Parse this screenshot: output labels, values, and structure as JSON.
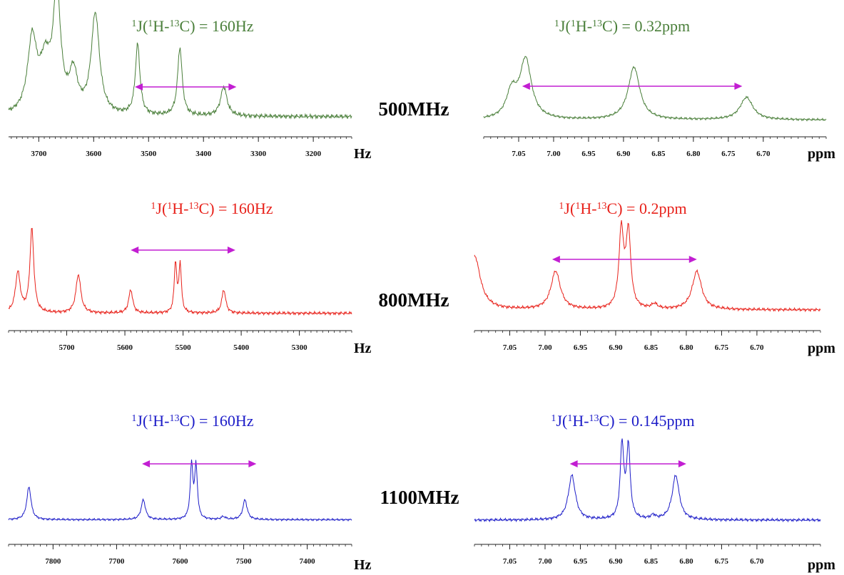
{
  "colors": {
    "green": "#4a7f3a",
    "red": "#e8211a",
    "blue": "#1c1cc8",
    "arrow": "#c21ed2",
    "axis": "#222222"
  },
  "fields": [
    {
      "label": "500MHz",
      "color": "#4a7f3a"
    },
    {
      "label": "800MHz",
      "color": "#e8211a"
    },
    {
      "label": "1100MHz",
      "color": "#1c1cc8"
    }
  ],
  "units": {
    "hz": "Hz",
    "ppm": "ppm"
  },
  "chart_data": [
    {
      "type": "line",
      "panel": "500MHz-Hz",
      "title_parts": [
        "1",
        "J(",
        "1",
        "H-",
        "13",
        "C) = 160Hz"
      ],
      "xlabel": "Hz",
      "xlim": [
        3755,
        3130
      ],
      "x_reversed": true,
      "xticks": [
        3700,
        3600,
        3500,
        3400,
        3300,
        3200
      ],
      "coupling_arrow": {
        "from": 3525,
        "to": 3340
      },
      "baseline": 0.05,
      "peaks": [
        {
          "x": 3712,
          "h": 0.62,
          "w": 10
        },
        {
          "x": 3688,
          "h": 0.4,
          "w": 12
        },
        {
          "x": 3667,
          "h": 1.0,
          "w": 8
        },
        {
          "x": 3637,
          "h": 0.33,
          "w": 9
        },
        {
          "x": 3597,
          "h": 0.85,
          "w": 9
        },
        {
          "x": 3520,
          "h": 0.6,
          "w": 5
        },
        {
          "x": 3443,
          "h": 0.58,
          "w": 5
        },
        {
          "x": 3363,
          "h": 0.25,
          "w": 7
        }
      ]
    },
    {
      "type": "line",
      "panel": "500MHz-ppm",
      "title_parts": [
        "1",
        "J(",
        "1",
        "H-",
        "13",
        "C) = 0.32ppm"
      ],
      "xlabel": "ppm",
      "xlim": [
        7.1,
        6.61
      ],
      "x_reversed": true,
      "xticks": [
        7.05,
        7.0,
        6.95,
        6.9,
        6.85,
        6.8,
        6.75,
        6.7
      ],
      "coupling_arrow": {
        "from": 7.045,
        "to": 6.73
      },
      "baseline": 0.04,
      "peaks": [
        {
          "x": 7.04,
          "h": 0.92,
          "w": 0.01
        },
        {
          "x": 7.06,
          "h": 0.4,
          "w": 0.009
        },
        {
          "x": 6.885,
          "h": 0.82,
          "w": 0.01
        },
        {
          "x": 6.724,
          "h": 0.35,
          "w": 0.011
        }
      ]
    },
    {
      "type": "line",
      "panel": "800MHz-Hz",
      "title_parts": [
        "1",
        "J(",
        "1",
        "H-",
        "13",
        "C) = 160Hz"
      ],
      "xlabel": "Hz",
      "xlim": [
        5800,
        5210
      ],
      "x_reversed": true,
      "xticks": [
        5700,
        5600,
        5500,
        5400,
        5300
      ],
      "coupling_arrow": {
        "from": 5590,
        "to": 5410
      },
      "baseline": 0.02,
      "peaks": [
        {
          "x": 5784,
          "h": 0.48,
          "w": 5
        },
        {
          "x": 5760,
          "h": 1.0,
          "w": 4
        },
        {
          "x": 5680,
          "h": 0.46,
          "w": 5
        },
        {
          "x": 5590,
          "h": 0.28,
          "w": 4
        },
        {
          "x": 5513,
          "h": 0.6,
          "w": 2.5
        },
        {
          "x": 5505,
          "h": 0.58,
          "w": 2.5
        },
        {
          "x": 5430,
          "h": 0.28,
          "w": 4
        }
      ]
    },
    {
      "type": "line",
      "panel": "800MHz-ppm",
      "title_parts": [
        "1",
        "J(",
        "1",
        "H-",
        "13",
        "C) = 0.2ppm"
      ],
      "xlabel": "ppm",
      "xlim": [
        7.1,
        6.61
      ],
      "x_reversed": true,
      "xticks": [
        7.05,
        7.0,
        6.95,
        6.9,
        6.85,
        6.8,
        6.75,
        6.7
      ],
      "coupling_arrow": {
        "from": 6.99,
        "to": 6.785
      },
      "baseline": 0.01,
      "peaks": [
        {
          "x": 7.1,
          "h": 0.68,
          "w": 0.01
        },
        {
          "x": 6.985,
          "h": 0.48,
          "w": 0.008
        },
        {
          "x": 6.892,
          "h": 0.97,
          "w": 0.004
        },
        {
          "x": 6.882,
          "h": 0.95,
          "w": 0.004
        },
        {
          "x": 6.845,
          "h": 0.06,
          "w": 0.005
        },
        {
          "x": 6.785,
          "h": 0.48,
          "w": 0.008
        }
      ]
    },
    {
      "type": "line",
      "panel": "1100MHz-Hz",
      "title_parts": [
        "1",
        "J(",
        "1",
        "H-",
        "13",
        "C) = 160Hz"
      ],
      "xlabel": "Hz",
      "xlim": [
        7870,
        7330
      ],
      "x_reversed": true,
      "xticks": [
        7800,
        7700,
        7600,
        7500,
        7400
      ],
      "coupling_arrow": {
        "from": 7660,
        "to": 7480
      },
      "baseline": 0.02,
      "peaks": [
        {
          "x": 7838,
          "h": 0.58,
          "w": 4
        },
        {
          "x": 7658,
          "h": 0.35,
          "w": 4
        },
        {
          "x": 7582,
          "h": 0.95,
          "w": 2.5
        },
        {
          "x": 7575,
          "h": 0.92,
          "w": 2.5
        },
        {
          "x": 7532,
          "h": 0.05,
          "w": 4
        },
        {
          "x": 7498,
          "h": 0.35,
          "w": 4
        }
      ]
    },
    {
      "type": "line",
      "panel": "1100MHz-ppm",
      "title_parts": [
        "1",
        "J(",
        "1",
        "H-",
        "13",
        "C) = 0.145ppm"
      ],
      "xlabel": "ppm",
      "xlim": [
        7.1,
        6.61
      ],
      "x_reversed": true,
      "xticks": [
        7.05,
        7.0,
        6.95,
        6.9,
        6.85,
        6.8,
        6.75,
        6.7
      ],
      "coupling_arrow": {
        "from": 6.965,
        "to": 6.8
      },
      "baseline": 0.01,
      "peaks": [
        {
          "x": 6.962,
          "h": 0.58,
          "w": 0.006
        },
        {
          "x": 6.891,
          "h": 0.97,
          "w": 0.003
        },
        {
          "x": 6.882,
          "h": 0.95,
          "w": 0.003
        },
        {
          "x": 6.847,
          "h": 0.05,
          "w": 0.004
        },
        {
          "x": 6.815,
          "h": 0.58,
          "w": 0.006
        }
      ]
    }
  ]
}
